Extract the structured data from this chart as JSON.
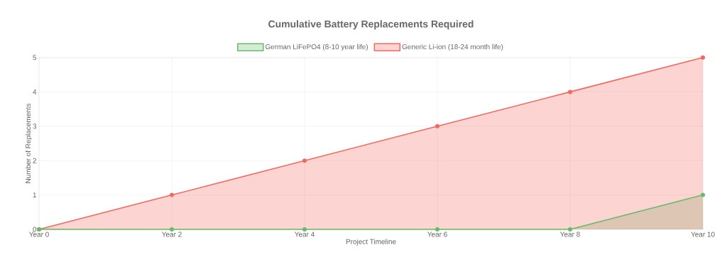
{
  "chart_data": {
    "type": "area",
    "title": "Cumulative Battery Replacements Required",
    "xlabel": "Project Timeline",
    "ylabel": "Number of Replacements",
    "categories": [
      "Year 0",
      "Year 2",
      "Year 4",
      "Year 6",
      "Year 8",
      "Year 10"
    ],
    "series": [
      {
        "name": "German LiFePO4 (8-10 year life)",
        "color": "#66bb6a",
        "values": [
          0,
          0,
          0,
          0,
          0,
          1
        ]
      },
      {
        "name": "Generic Li-ion (18-24 month life)",
        "color": "#f4695e",
        "values": [
          0,
          1,
          2,
          3,
          4,
          5
        ]
      }
    ],
    "ylim": [
      0,
      5
    ],
    "yticks": [
      0,
      1,
      2,
      3,
      4,
      5
    ],
    "grid": true,
    "legend": "top",
    "marker": "circle"
  }
}
